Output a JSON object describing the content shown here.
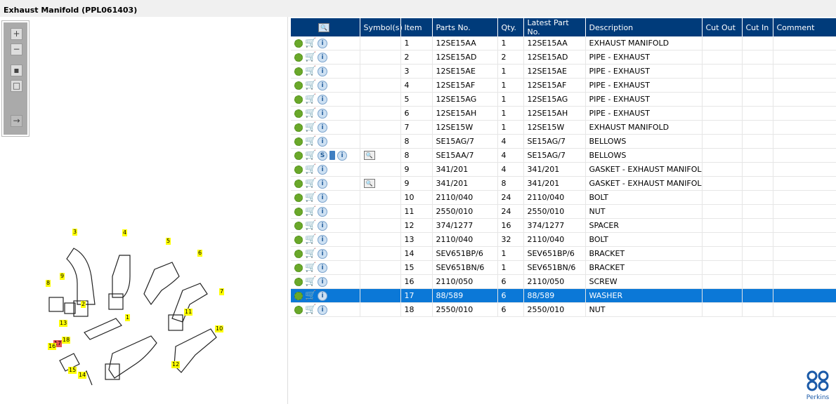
{
  "window": {
    "title": "Exhaust Manifold (PPL061403)"
  },
  "toolbar": {
    "icons": [
      "zoom-in-icon",
      "zoom-out-icon",
      "fit-all-icon",
      "fit-window-icon",
      "toggle-panel-icon"
    ]
  },
  "diagram": {
    "callouts": [
      "3",
      "4",
      "5",
      "6",
      "7",
      "8",
      "9",
      "2",
      "1",
      "13",
      "18",
      "17",
      "16",
      "15",
      "14",
      "11",
      "10",
      "12"
    ],
    "highlighted": "17",
    "callout_color": "#ffff00",
    "highlight_color": "#e85050"
  },
  "grid": {
    "columns": [
      "",
      "Symbol(s)",
      "Item",
      "Parts No.",
      "Qty.",
      "Latest Part No.",
      "Description",
      "Cut Out",
      "Cut In",
      "Comment"
    ],
    "rows": [
      {
        "item": "1",
        "part": "12SE15AA",
        "qty": "1",
        "latest": "12SE15AA",
        "desc": "EXHAUST MANIFOLD"
      },
      {
        "item": "2",
        "part": "12SE15AD",
        "qty": "2",
        "latest": "12SE15AD",
        "desc": "PIPE - EXHAUST"
      },
      {
        "item": "3",
        "part": "12SE15AE",
        "qty": "1",
        "latest": "12SE15AE",
        "desc": "PIPE - EXHAUST"
      },
      {
        "item": "4",
        "part": "12SE15AF",
        "qty": "1",
        "latest": "12SE15AF",
        "desc": "PIPE - EXHAUST"
      },
      {
        "item": "5",
        "part": "12SE15AG",
        "qty": "1",
        "latest": "12SE15AG",
        "desc": "PIPE - EXHAUST"
      },
      {
        "item": "6",
        "part": "12SE15AH",
        "qty": "1",
        "latest": "12SE15AH",
        "desc": "PIPE - EXHAUST"
      },
      {
        "item": "7",
        "part": "12SE15W",
        "qty": "1",
        "latest": "12SE15W",
        "desc": "EXHAUST MANIFOLD"
      },
      {
        "item": "8",
        "part": "SE15AG/7",
        "qty": "4",
        "latest": "SE15AG/7",
        "desc": "BELLOWS"
      },
      {
        "item": "8",
        "part": "SE15AA/7",
        "qty": "4",
        "latest": "SE15AG/7",
        "desc": "BELLOWS",
        "extra_icons": true,
        "symbol": true
      },
      {
        "item": "9",
        "part": "341/201",
        "qty": "4",
        "latest": "341/201",
        "desc": "GASKET - EXHAUST MANIFOLD"
      },
      {
        "item": "9",
        "part": "341/201",
        "qty": "8",
        "latest": "341/201",
        "desc": "GASKET - EXHAUST MANIFOLD",
        "symbol": true
      },
      {
        "item": "10",
        "part": "2110/040",
        "qty": "24",
        "latest": "2110/040",
        "desc": "BOLT"
      },
      {
        "item": "11",
        "part": "2550/010",
        "qty": "24",
        "latest": "2550/010",
        "desc": "NUT"
      },
      {
        "item": "12",
        "part": "374/1277",
        "qty": "16",
        "latest": "374/1277",
        "desc": "SPACER"
      },
      {
        "item": "13",
        "part": "2110/040",
        "qty": "32",
        "latest": "2110/040",
        "desc": "BOLT"
      },
      {
        "item": "14",
        "part": "SEV651BP/6",
        "qty": "1",
        "latest": "SEV651BP/6",
        "desc": "BRACKET"
      },
      {
        "item": "15",
        "part": "SEV651BN/6",
        "qty": "1",
        "latest": "SEV651BN/6",
        "desc": "BRACKET"
      },
      {
        "item": "16",
        "part": "2110/050",
        "qty": "6",
        "latest": "2110/050",
        "desc": "SCREW"
      },
      {
        "item": "17",
        "part": "88/589",
        "qty": "6",
        "latest": "88/589",
        "desc": "WASHER",
        "selected": true
      },
      {
        "item": "18",
        "part": "2550/010",
        "qty": "6",
        "latest": "2550/010",
        "desc": "NUT"
      }
    ],
    "selected_color": "#0b78d7",
    "header_color": "#003b7a"
  },
  "brand": {
    "logo_text": "Perkins"
  }
}
